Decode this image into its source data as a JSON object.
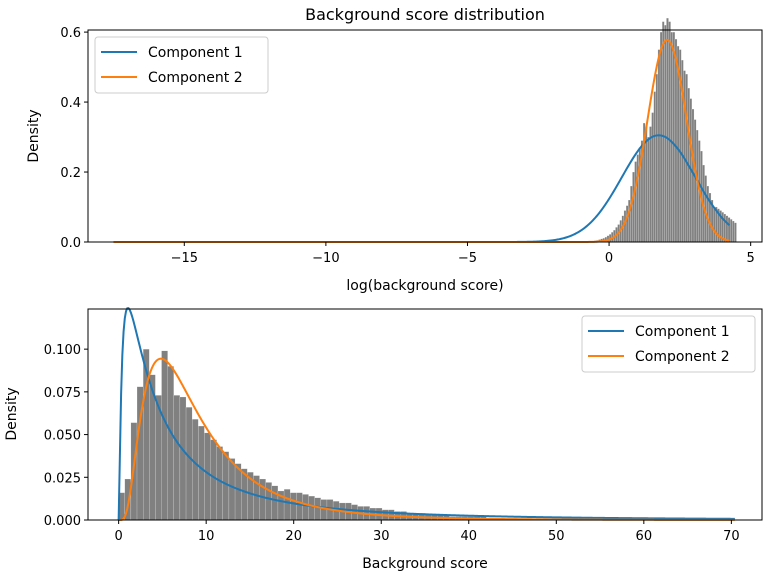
{
  "chart_data": [
    {
      "type": "bar",
      "title": "Background score distribution",
      "xlabel": "log(background score)",
      "ylabel": "Density",
      "xlim": [
        -18.4,
        5.4
      ],
      "ylim": [
        0.0,
        0.6
      ],
      "xticks": [
        "−15",
        "−10",
        "−5",
        "0",
        "5"
      ],
      "xtick_values": [
        -15,
        -10,
        -5,
        0,
        5
      ],
      "yticks": [
        "0.0",
        "0.2",
        "0.4",
        "0.6"
      ],
      "ytick_values": [
        0.0,
        0.2,
        0.4,
        0.6
      ],
      "grid": false,
      "legend_position": "upper left",
      "legend": [
        "Component 1",
        "Component 2"
      ],
      "histogram": {
        "color": "#808080",
        "bin_width": 0.075,
        "x_start": -0.6,
        "values": [
          0.003,
          0.004,
          0.005,
          0.007,
          0.009,
          0.011,
          0.014,
          0.018,
          0.022,
          0.028,
          0.034,
          0.042,
          0.05,
          0.062,
          0.075,
          0.09,
          0.104,
          0.12,
          0.16,
          0.2,
          0.23,
          0.25,
          0.27,
          0.29,
          0.34,
          0.33,
          0.3,
          0.33,
          0.37,
          0.43,
          0.48,
          0.55,
          0.6,
          0.63,
          0.62,
          0.64,
          0.63,
          0.6,
          0.6,
          0.58,
          0.56,
          0.55,
          0.52,
          0.49,
          0.48,
          0.44,
          0.41,
          0.38,
          0.35,
          0.32,
          0.29,
          0.26,
          0.22,
          0.19,
          0.16,
          0.14,
          0.12,
          0.1,
          0.1,
          0.095,
          0.09,
          0.085,
          0.08,
          0.075,
          0.07,
          0.065,
          0.06,
          0.055
        ]
      },
      "series": [
        {
          "name": "Component 1",
          "color": "#1f77b4",
          "kind": "gaussian",
          "mean": 1.75,
          "std": 1.3,
          "peak": 0.305,
          "x_range": [
            -17.5,
            4.25
          ]
        },
        {
          "name": "Component 2",
          "color": "#ff7f0e",
          "kind": "gaussian",
          "mean": 2.05,
          "std": 0.69,
          "peak": 0.578,
          "x_range": [
            -17.5,
            4.25
          ]
        }
      ]
    },
    {
      "type": "bar",
      "title": "",
      "xlabel": "Background score",
      "ylabel": "Density",
      "xlim": [
        -3.5,
        73.5
      ],
      "ylim": [
        0.0,
        0.12
      ],
      "xticks": [
        "0",
        "10",
        "20",
        "30",
        "40",
        "50",
        "60",
        "70"
      ],
      "xtick_values": [
        0,
        10,
        20,
        30,
        40,
        50,
        60,
        70
      ],
      "yticks": [
        "0.000",
        "0.025",
        "0.050",
        "0.075",
        "0.100"
      ],
      "ytick_values": [
        0.0,
        0.025,
        0.05,
        0.075,
        0.1
      ],
      "grid": false,
      "legend_position": "upper right",
      "legend": [
        "Component 1",
        "Component 2"
      ],
      "histogram": {
        "color": "#808080",
        "bin_width": 0.7,
        "x_start": 0.0,
        "values": [
          0.016,
          0.024,
          0.057,
          0.078,
          0.1,
          0.085,
          0.073,
          0.099,
          0.09,
          0.073,
          0.072,
          0.066,
          0.059,
          0.055,
          0.051,
          0.047,
          0.043,
          0.04,
          0.036,
          0.033,
          0.03,
          0.028,
          0.026,
          0.024,
          0.022,
          0.02,
          0.017,
          0.018,
          0.016,
          0.016,
          0.015,
          0.014,
          0.013,
          0.012,
          0.012,
          0.011,
          0.01,
          0.01,
          0.009,
          0.008,
          0.008,
          0.007,
          0.007,
          0.006,
          0.006,
          0.005,
          0.005,
          0.004,
          0.004,
          0.004,
          0.003,
          0.003,
          0.003,
          0.003,
          0.002,
          0.002,
          0.002,
          0.002,
          0.002,
          0.002,
          0.001,
          0.001,
          0.001,
          0.001,
          0.001,
          0.001,
          0.001,
          0.001,
          0.001,
          0.001,
          0.001,
          0.001,
          0.001,
          0.001,
          0.001,
          0.001,
          0.001,
          0.001,
          0.001,
          0.001
        ]
      },
      "series": [
        {
          "name": "Component 1",
          "color": "#1f77b4",
          "kind": "lognormal",
          "mu": 1.75,
          "sigma": 1.3,
          "peak_x": 1.0,
          "peak_y": 0.118,
          "x_range": [
            0.0,
            70.4
          ]
        },
        {
          "name": "Component 2",
          "color": "#ff7f0e",
          "kind": "lognormal",
          "mu": 2.05,
          "sigma": 0.69,
          "peak_x": 4.0,
          "peak_y": 0.094,
          "x_range": [
            0.0,
            70.4
          ]
        }
      ]
    }
  ],
  "top": {
    "title": "Background score distribution",
    "xlabel": "log(background score)",
    "ylabel": "Density",
    "legend": [
      "Component 1",
      "Component 2"
    ]
  },
  "bottom": {
    "xlabel": "Background score",
    "ylabel": "Density",
    "legend": [
      "Component 1",
      "Component 2"
    ]
  }
}
